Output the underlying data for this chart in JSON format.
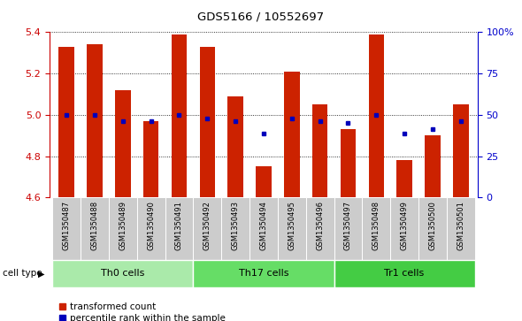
{
  "title": "GDS5166 / 10552697",
  "samples": [
    "GSM1350487",
    "GSM1350488",
    "GSM1350489",
    "GSM1350490",
    "GSM1350491",
    "GSM1350492",
    "GSM1350493",
    "GSM1350494",
    "GSM1350495",
    "GSM1350496",
    "GSM1350497",
    "GSM1350498",
    "GSM1350499",
    "GSM1350500",
    "GSM1350501"
  ],
  "red_values": [
    5.33,
    5.34,
    5.12,
    4.97,
    5.39,
    5.33,
    5.09,
    4.75,
    5.21,
    5.05,
    4.93,
    5.39,
    4.78,
    4.9,
    5.05
  ],
  "blue_values": [
    5.0,
    5.0,
    4.97,
    4.97,
    5.0,
    4.98,
    4.97,
    4.91,
    4.98,
    4.97,
    4.96,
    5.0,
    4.91,
    4.93,
    4.97
  ],
  "y_min": 4.6,
  "y_max": 5.4,
  "y_ticks_left": [
    4.6,
    4.8,
    5.0,
    5.2,
    5.4
  ],
  "y_ticks_right_vals": [
    0,
    25,
    50,
    75,
    100
  ],
  "y_ticks_right_labels": [
    "0",
    "25",
    "50",
    "75",
    "100%"
  ],
  "cell_groups": [
    {
      "label": "Th0 cells",
      "start": 0,
      "end": 5,
      "color": "#aaeaaa"
    },
    {
      "label": "Th17 cells",
      "start": 5,
      "end": 10,
      "color": "#66dd66"
    },
    {
      "label": "Tr1 cells",
      "start": 10,
      "end": 15,
      "color": "#44cc44"
    }
  ],
  "bar_color": "#cc2200",
  "dot_color": "#0000bb",
  "bar_width": 0.55,
  "legend_items": [
    {
      "label": "transformed count",
      "color": "#cc2200"
    },
    {
      "label": "percentile rank within the sample",
      "color": "#0000bb"
    }
  ],
  "cell_type_label": "cell type",
  "right_axis_color": "#0000cc",
  "left_axis_color": "#cc0000",
  "xticklabel_bg": "#cccccc",
  "xticklabel_sep": "#ffffff"
}
